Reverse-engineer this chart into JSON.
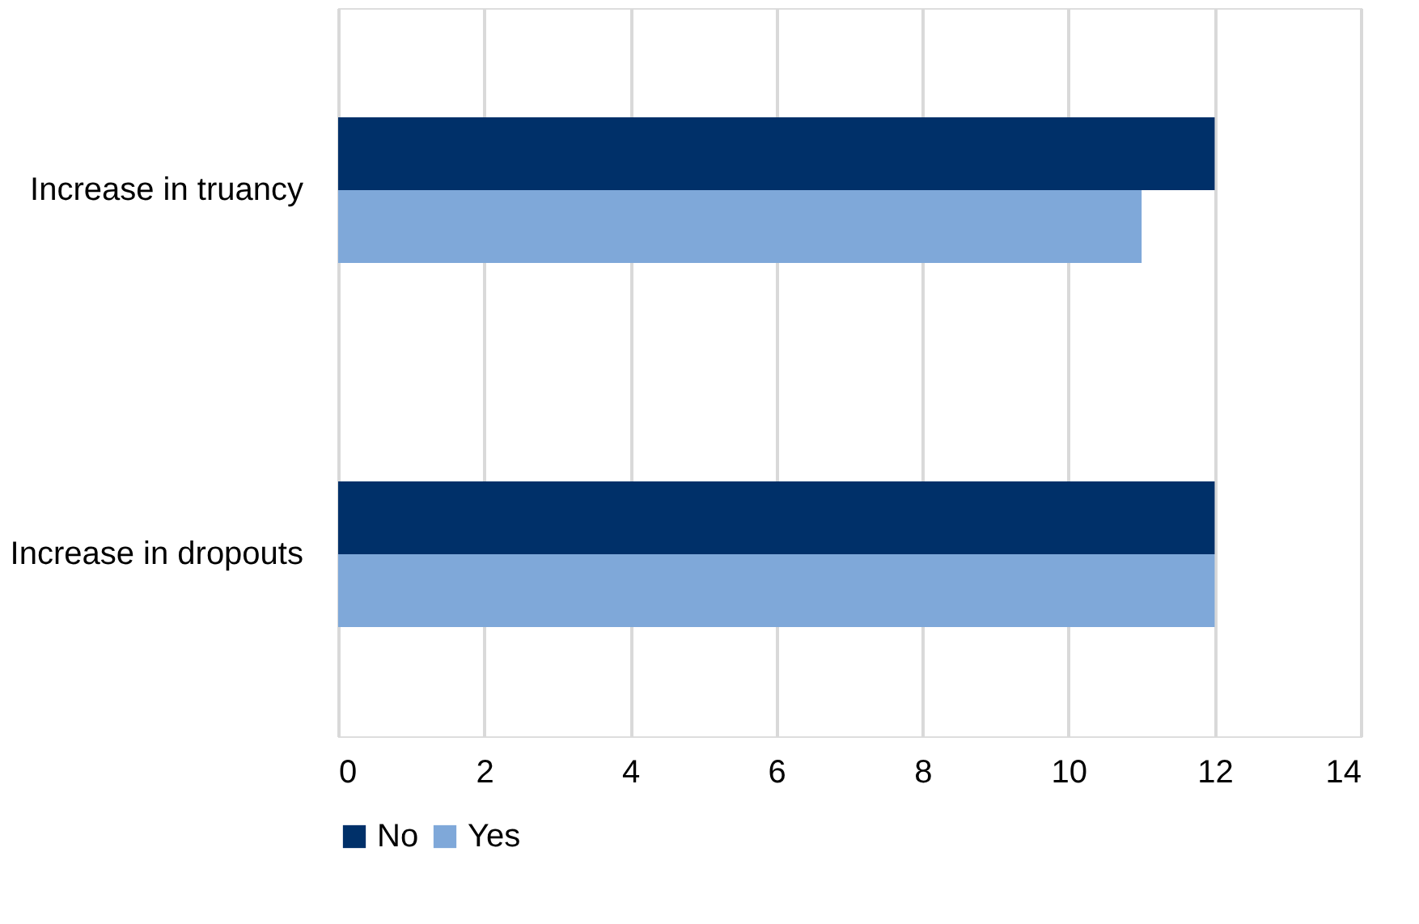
{
  "chart_data": {
    "type": "bar",
    "orientation": "horizontal",
    "categories": [
      "Increase in truancy",
      "Increase in dropouts"
    ],
    "series": [
      {
        "name": "No",
        "color": "#003069",
        "values": [
          12,
          12
        ]
      },
      {
        "name": "Yes",
        "color": "#7fa8d9",
        "values": [
          11,
          12
        ]
      }
    ],
    "xlim": [
      0,
      14
    ],
    "xticks": [
      0,
      2,
      4,
      6,
      8,
      10,
      12,
      14
    ],
    "grid": "x",
    "legend": "bottom"
  }
}
